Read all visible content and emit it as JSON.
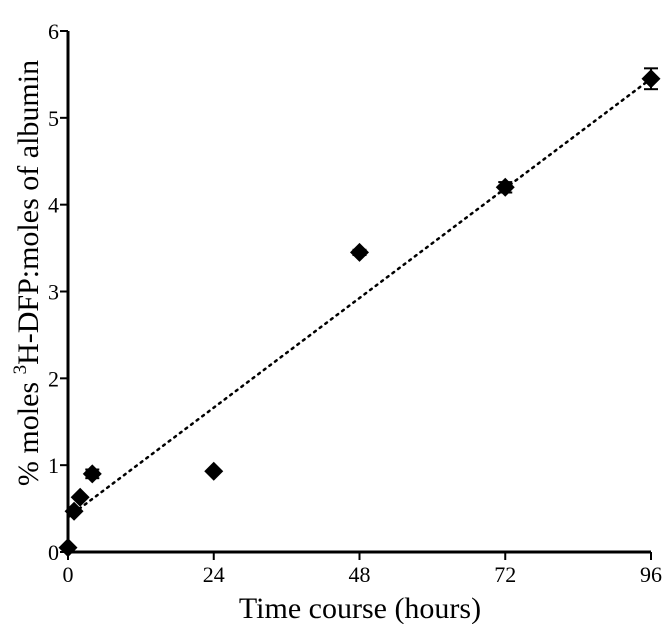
{
  "chart_data": {
    "type": "scatter",
    "xlabel": "Time course (hours)",
    "ylabel_parts": {
      "prefix": "% moles ",
      "superscript": "3",
      "suffix": "H-DFP:moles of albumin"
    },
    "xlim": [
      0,
      96
    ],
    "ylim": [
      0,
      6
    ],
    "xticks": [
      0,
      24,
      48,
      72,
      96
    ],
    "yticks": [
      0,
      1,
      2,
      3,
      4,
      5,
      6
    ],
    "grid": false,
    "series": [
      {
        "marker": "diamond",
        "color": "#000000",
        "points": [
          {
            "x": 0,
            "y": 0.05,
            "err": 0
          },
          {
            "x": 1,
            "y": 0.47,
            "err": 0
          },
          {
            "x": 2,
            "y": 0.63,
            "err": 0
          },
          {
            "x": 4,
            "y": 0.9,
            "err": 0.05
          },
          {
            "x": 24,
            "y": 0.93,
            "err": 0
          },
          {
            "x": 48,
            "y": 3.45,
            "err": 0.03
          },
          {
            "x": 72,
            "y": 4.2,
            "err": 0.06
          },
          {
            "x": 96,
            "y": 5.45,
            "err": 0.12
          }
        ]
      }
    ],
    "trendline": {
      "style": "dotted",
      "x": [
        0,
        96
      ],
      "y": [
        0.4,
        5.45
      ]
    }
  }
}
